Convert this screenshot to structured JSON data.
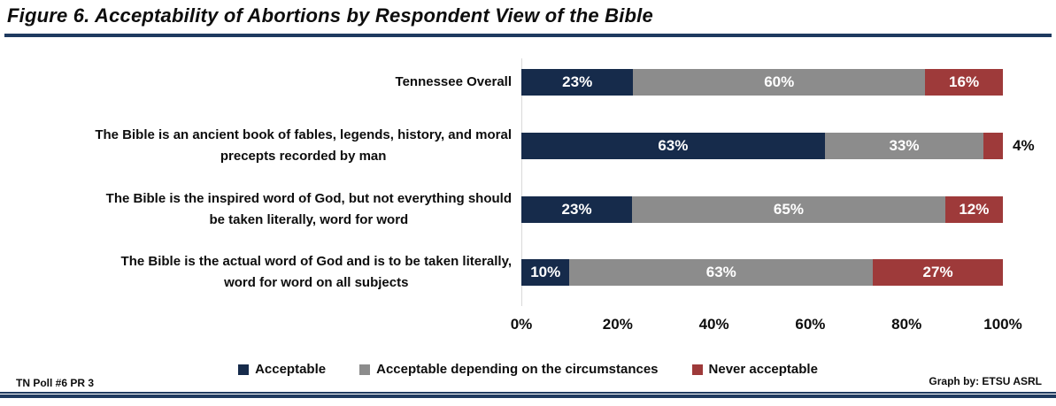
{
  "title": "Figure 6. Acceptability of Abortions by Respondent View of the Bible",
  "footer": {
    "left": "TN Poll #6 PR 3",
    "right": "Graph by: ETSU ASRL"
  },
  "colors": {
    "navy": "#162B4B",
    "gray": "#8C8C8C",
    "red": "#9E3A3A",
    "rule_navy": "#1F3A5F",
    "axis_line": "#D9D9D9",
    "label_inside": "#FFFFFF",
    "label_outside": "#0D0D0D"
  },
  "chart_data": {
    "type": "bar",
    "orientation": "horizontal",
    "stacked": true,
    "title": "Figure 6. Acceptability of Abortions by Respondent View of the Bible",
    "xlabel": "",
    "ylabel": "",
    "xlim": [
      0,
      100
    ],
    "grid": false,
    "legend_position": "bottom",
    "categories": [
      [
        "Tennessee Overall"
      ],
      [
        "The Bible is an ancient book of fables, legends, history, and moral",
        "precepts recorded by man"
      ],
      [
        "The Bible is the inspired word of God, but not everything should",
        "be taken literally, word for word"
      ],
      [
        "The Bible is the actual word of God and is to be taken literally,",
        "word for word on all subjects"
      ]
    ],
    "series": [
      {
        "name": "Acceptable",
        "color_key": "navy",
        "values": [
          23,
          63,
          23,
          10
        ],
        "labels": [
          "23%",
          "63%",
          "23%",
          "10%"
        ]
      },
      {
        "name": "Acceptable depending on the circumstances",
        "color_key": "gray",
        "values": [
          60,
          33,
          65,
          63
        ],
        "labels": [
          "60%",
          "33%",
          "65%",
          "63%"
        ]
      },
      {
        "name": "Never acceptable",
        "color_key": "red",
        "values": [
          16,
          4,
          12,
          27
        ],
        "labels": [
          "16%",
          "4%",
          "12%",
          "27%"
        ]
      }
    ],
    "x_ticks": [
      "0%",
      "20%",
      "40%",
      "60%",
      "80%",
      "100%"
    ]
  }
}
